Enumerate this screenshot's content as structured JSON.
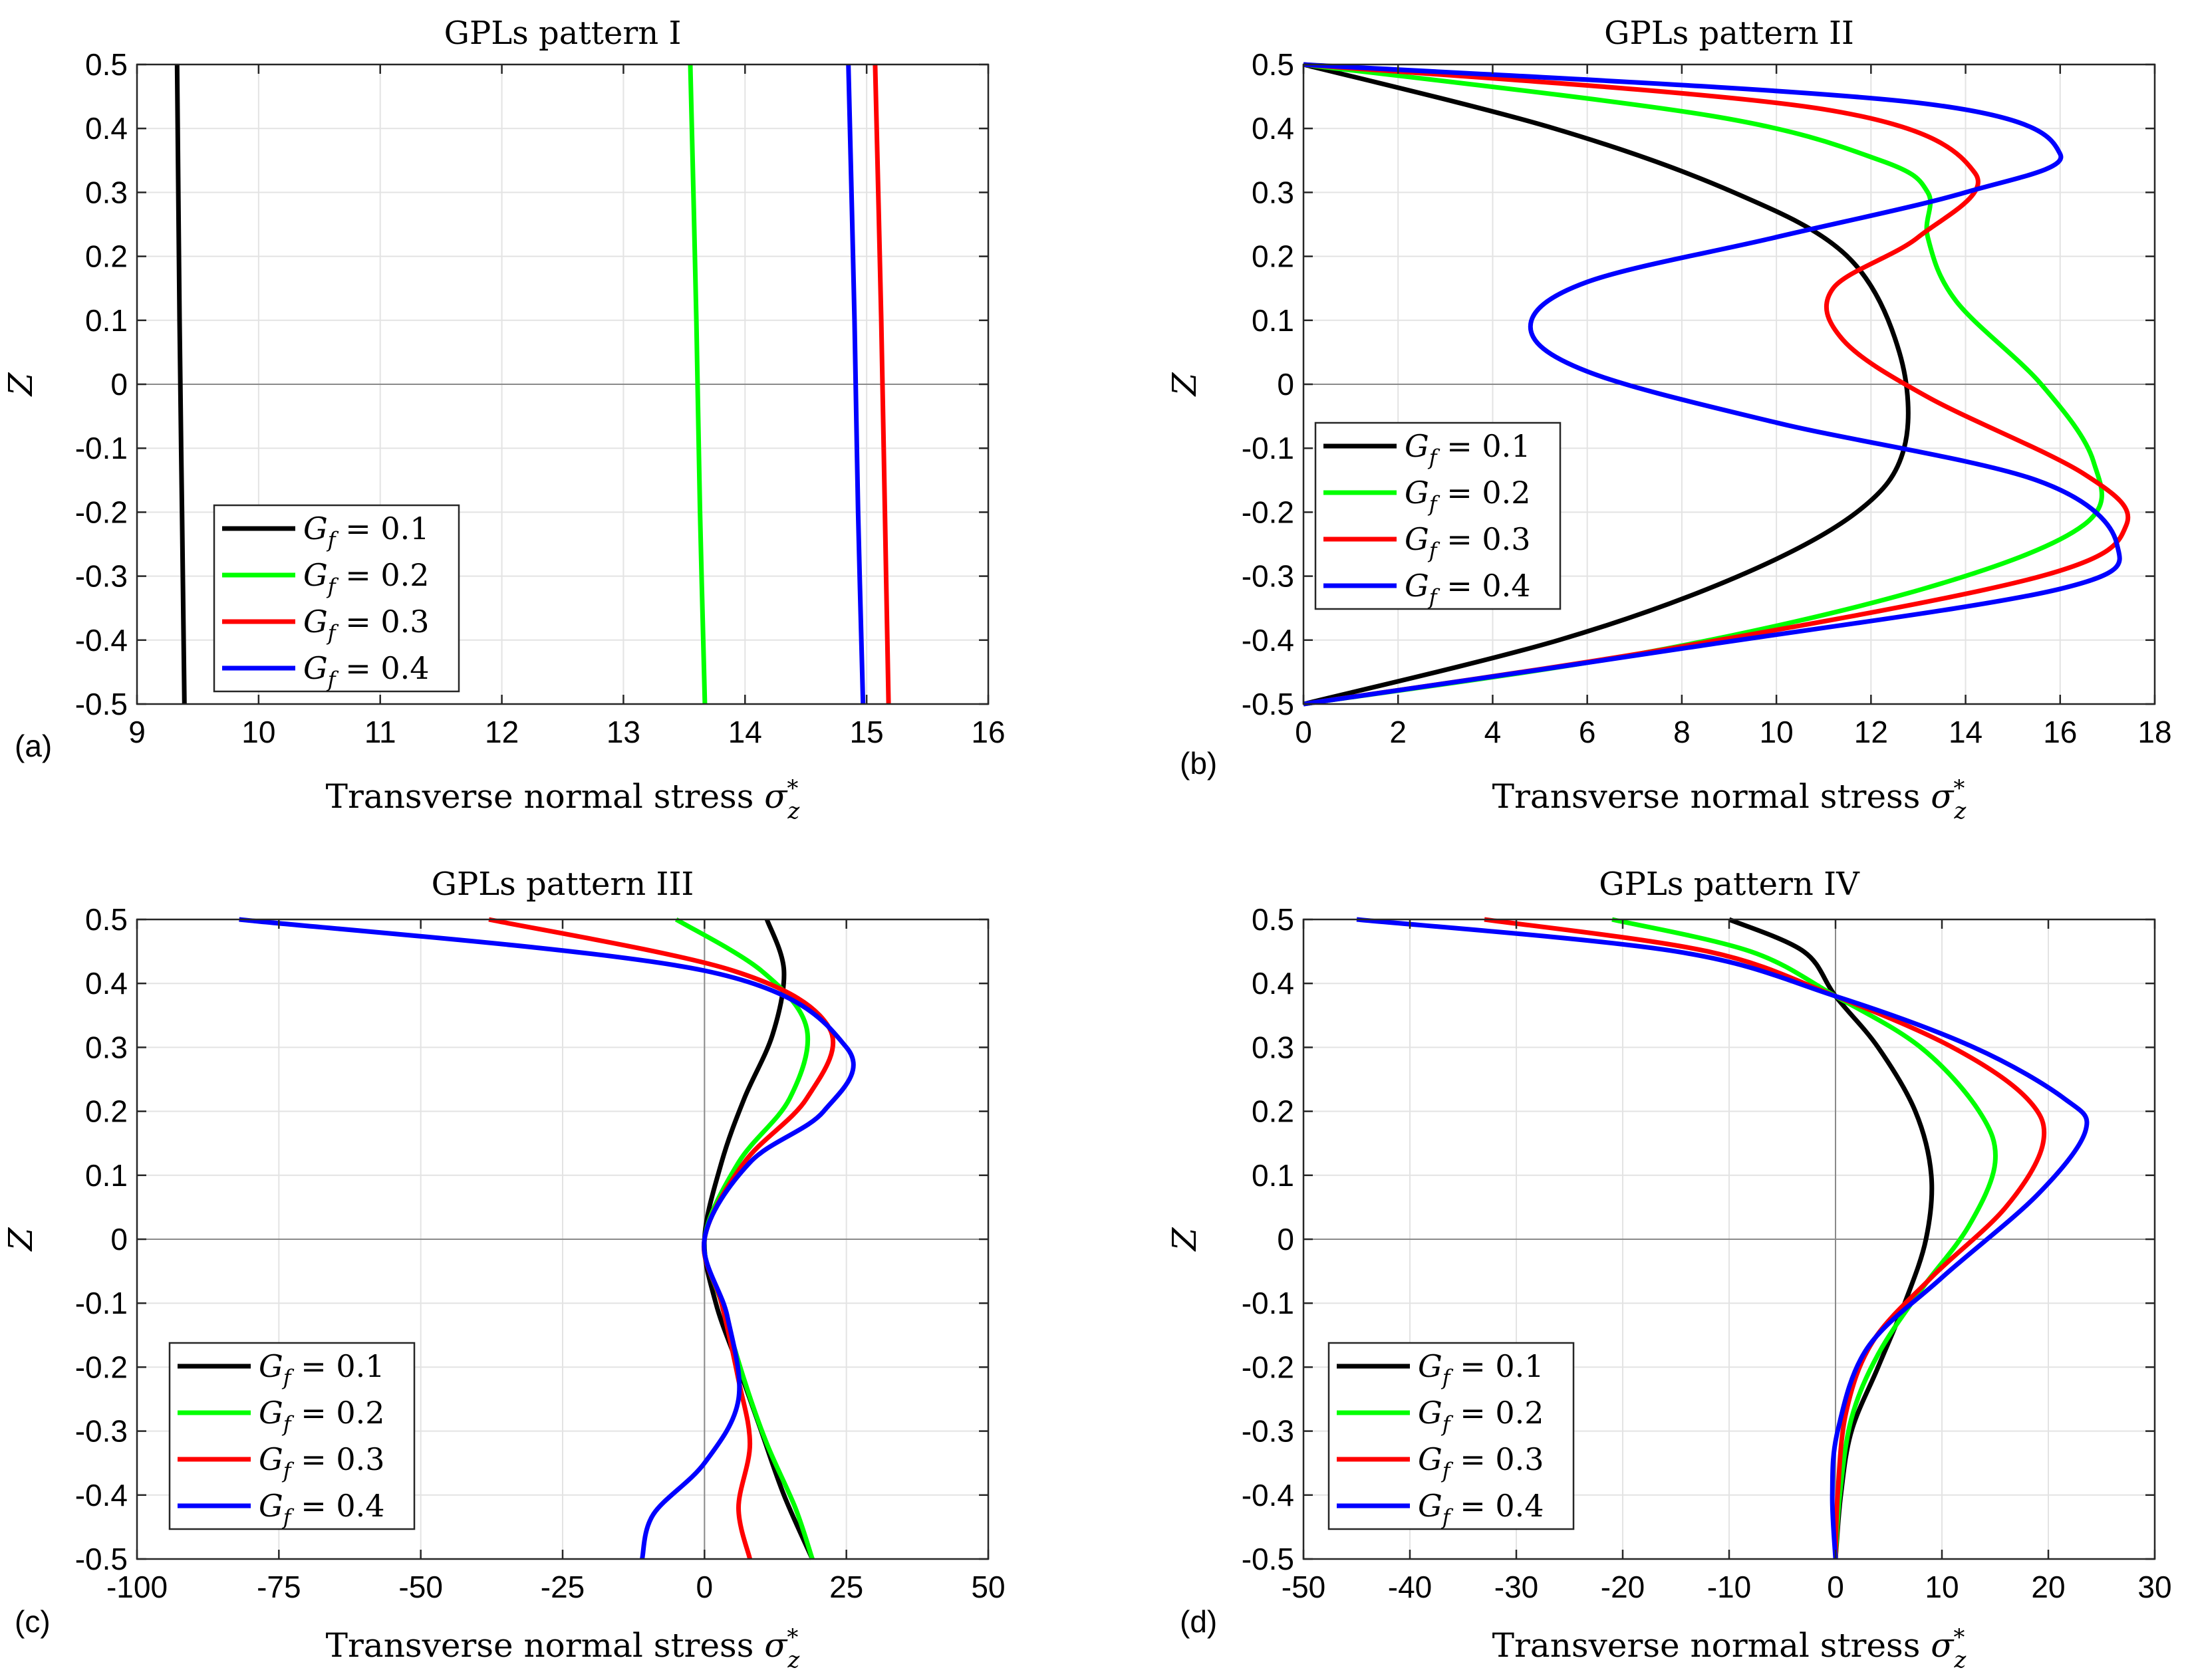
{
  "figure": {
    "legend_symbol": "G_f",
    "x_symbol": "σ*z"
  },
  "chart_data": [
    {
      "type": "line",
      "panel_label": "(a)",
      "title": "GPLs pattern I",
      "xlabel": "Transverse normal stress",
      "ylabel": "Z",
      "xlim": [
        9,
        16
      ],
      "ylim": [
        -0.5,
        0.5
      ],
      "xticks": [
        9,
        10,
        11,
        12,
        13,
        14,
        15,
        16
      ],
      "xtick_labels": [
        "9",
        "10",
        "11",
        "12",
        "13",
        "14",
        "15",
        "16"
      ],
      "yticks": [
        0.5,
        0.4,
        0.3,
        0.2,
        0.1,
        0,
        -0.1,
        -0.2,
        -0.3,
        -0.4,
        -0.5
      ],
      "ytick_labels": [
        "0.5",
        "0.4",
        "0.3",
        "0.2",
        "0.1",
        "0",
        "-0.1",
        "-0.2",
        "-0.3",
        "-0.4",
        "-0.5"
      ],
      "legend_position": "bottom-left",
      "series": [
        {
          "name": "Gf = 0.1",
          "value_label": "= 0.1",
          "color": "#000000",
          "x": [
            9.33,
            9.35,
            9.37,
            9.39
          ],
          "z": [
            0.5,
            0.1,
            -0.2,
            -0.5
          ]
        },
        {
          "name": "Gf = 0.2",
          "value_label": "= 0.2",
          "color": "#00ff00",
          "x": [
            13.55,
            13.6,
            13.63,
            13.67
          ],
          "z": [
            0.5,
            0.1,
            -0.2,
            -0.5
          ]
        },
        {
          "name": "Gf = 0.3",
          "value_label": "= 0.3",
          "color": "#ff0000",
          "x": [
            15.07,
            15.12,
            15.15,
            15.18
          ],
          "z": [
            0.5,
            0.1,
            -0.2,
            -0.5
          ]
        },
        {
          "name": "Gf = 0.4",
          "value_label": "= 0.4",
          "color": "#0000ff",
          "x": [
            14.85,
            14.9,
            14.93,
            14.97
          ],
          "z": [
            0.5,
            0.1,
            -0.2,
            -0.5
          ]
        }
      ]
    },
    {
      "type": "line",
      "panel_label": "(b)",
      "title": "GPLs pattern II",
      "xlabel": "Transverse normal stress",
      "ylabel": "Z",
      "xlim": [
        0,
        18
      ],
      "ylim": [
        -0.5,
        0.5
      ],
      "xticks": [
        0,
        2,
        4,
        6,
        8,
        10,
        12,
        14,
        16,
        18
      ],
      "xtick_labels": [
        "0",
        "2",
        "4",
        "6",
        "8",
        "10",
        "12",
        "14",
        "16",
        "18"
      ],
      "yticks": [
        0.5,
        0.4,
        0.3,
        0.2,
        0.1,
        0,
        -0.1,
        -0.2,
        -0.3,
        -0.4,
        -0.5
      ],
      "ytick_labels": [
        "0.5",
        "0.4",
        "0.3",
        "0.2",
        "0.1",
        "0",
        "-0.1",
        "-0.2",
        "-0.3",
        "-0.4",
        "-0.5"
      ],
      "legend_position": "middle-left",
      "series": [
        {
          "name": "Gf = 0.1",
          "value_label": "= 0.1",
          "color": "#000000",
          "x": [
            0,
            5.3,
            9.1,
            11.5,
            12.6,
            12.7,
            11.7,
            9.2,
            5.4,
            0
          ],
          "z": [
            0.5,
            0.4,
            0.3,
            0.2,
            0.05,
            -0.1,
            -0.2,
            -0.3,
            -0.4,
            -0.5
          ]
        },
        {
          "name": "Gf = 0.2",
          "value_label": "= 0.2",
          "color": "#00ff00",
          "x": [
            0,
            8.6,
            12.2,
            13.2,
            13.2,
            13.8,
            15.6,
            16.7,
            16.5,
            13.1,
            7.2,
            0
          ],
          "z": [
            0.5,
            0.42,
            0.35,
            0.3,
            0.23,
            0.13,
            0.0,
            -0.12,
            -0.22,
            -0.32,
            -0.42,
            -0.5
          ]
        },
        {
          "name": "Gf = 0.3",
          "value_label": "= 0.3",
          "color": "#ff0000",
          "x": [
            0,
            11.0,
            14.2,
            13.0,
            11.2,
            11.4,
            13.2,
            16.5,
            17.4,
            15.6,
            8.0,
            0
          ],
          "z": [
            0.5,
            0.43,
            0.33,
            0.23,
            0.15,
            0.07,
            -0.02,
            -0.14,
            -0.22,
            -0.3,
            -0.41,
            -0.5
          ]
        },
        {
          "name": "Gf = 0.4",
          "value_label": "= 0.4",
          "color": "#0000ff",
          "x": [
            0,
            13.0,
            16.0,
            14.0,
            10.0,
            6.0,
            4.8,
            6.0,
            10.0,
            15.5,
            17.2,
            16.0,
            8.3,
            0
          ],
          "z": [
            0.5,
            0.44,
            0.36,
            0.3,
            0.23,
            0.16,
            0.09,
            0.02,
            -0.06,
            -0.15,
            -0.25,
            -0.32,
            -0.41,
            -0.5
          ]
        }
      ]
    },
    {
      "type": "line",
      "panel_label": "(c)",
      "title": "GPLs pattern III",
      "xlabel": "Transverse normal stress",
      "ylabel": "Z",
      "xlim": [
        -100,
        50
      ],
      "ylim": [
        -0.5,
        0.5
      ],
      "xticks": [
        -100,
        -75,
        -50,
        -25,
        0,
        25,
        50
      ],
      "xtick_labels": [
        "-100",
        "-75",
        "-50",
        "-25",
        "0",
        "25",
        "50"
      ],
      "yticks": [
        0.5,
        0.4,
        0.3,
        0.2,
        0.1,
        0,
        -0.1,
        -0.2,
        -0.3,
        -0.4,
        -0.5
      ],
      "ytick_labels": [
        "0.5",
        "0.4",
        "0.3",
        "0.2",
        "0.1",
        "0",
        "-0.1",
        "-0.2",
        "-0.3",
        "-0.4",
        "-0.5"
      ],
      "legend_position": "bottom-left",
      "series": [
        {
          "name": "Gf = 0.1",
          "value_label": "= 0.1",
          "color": "#000000",
          "x": [
            11,
            14,
            12,
            7,
            3,
            0,
            2,
            6,
            10,
            14,
            19
          ],
          "z": [
            0.5,
            0.42,
            0.32,
            0.22,
            0.12,
            0.0,
            -0.1,
            -0.2,
            -0.3,
            -0.4,
            -0.5
          ]
        },
        {
          "name": "Gf = 0.2",
          "value_label": "= 0.2",
          "color": "#00ff00",
          "x": [
            -5,
            10,
            18,
            15,
            6,
            0,
            3,
            7,
            11,
            16,
            19
          ],
          "z": [
            0.5,
            0.42,
            0.33,
            0.22,
            0.12,
            0.0,
            -0.1,
            -0.22,
            -0.32,
            -0.42,
            -0.5
          ]
        },
        {
          "name": "Gf = 0.3",
          "value_label": "= 0.3",
          "color": "#ff0000",
          "x": [
            -38,
            5,
            22,
            18,
            7,
            0,
            3,
            6,
            8,
            6,
            8
          ],
          "z": [
            0.5,
            0.42,
            0.33,
            0.22,
            0.12,
            0.0,
            -0.1,
            -0.22,
            -0.32,
            -0.42,
            -0.5
          ]
        },
        {
          "name": "Gf = 0.4",
          "value_label": "= 0.4",
          "color": "#0000ff",
          "x": [
            -82,
            0,
            25,
            21,
            8,
            0,
            4,
            6,
            0,
            -9,
            -11
          ],
          "z": [
            0.5,
            0.42,
            0.3,
            0.2,
            0.12,
            0.0,
            -0.12,
            -0.25,
            -0.35,
            -0.43,
            -0.5
          ]
        }
      ]
    },
    {
      "type": "line",
      "panel_label": "(d)",
      "title": "GPLs pattern IV",
      "xlabel": "Transverse normal stress",
      "ylabel": "Z",
      "xlim": [
        -50,
        30
      ],
      "ylim": [
        -0.5,
        0.5
      ],
      "xticks": [
        -50,
        -40,
        -30,
        -20,
        -10,
        0,
        10,
        20,
        30
      ],
      "xtick_labels": [
        "-50",
        "-40",
        "-30",
        "-20",
        "-10",
        "0",
        "10",
        "20",
        "30"
      ],
      "yticks": [
        0.5,
        0.4,
        0.3,
        0.2,
        0.1,
        0,
        -0.1,
        -0.2,
        -0.3,
        -0.4,
        -0.5
      ],
      "ytick_labels": [
        "0.5",
        "0.4",
        "0.3",
        "0.2",
        "0.1",
        "0",
        "-0.1",
        "-0.2",
        "-0.3",
        "-0.4",
        "-0.5"
      ],
      "legend_position": "bottom-left",
      "series": [
        {
          "name": "Gf = 0.1",
          "value_label": "= 0.1",
          "color": "#000000",
          "x": [
            -10,
            -3,
            0,
            4,
            7.5,
            9,
            8.5,
            6.5,
            4,
            1.5,
            0.5,
            0
          ],
          "z": [
            0.5,
            0.45,
            0.38,
            0.3,
            0.2,
            0.1,
            0.0,
            -0.1,
            -0.2,
            -0.3,
            -0.4,
            -0.5
          ]
        },
        {
          "name": "Gf = 0.2",
          "value_label": "= 0.2",
          "color": "#00ff00",
          "x": [
            -21,
            -8,
            0,
            8,
            13.5,
            15,
            12.5,
            8,
            4,
            1.5,
            0.4,
            0
          ],
          "z": [
            0.5,
            0.45,
            0.38,
            0.3,
            0.2,
            0.12,
            0.02,
            -0.08,
            -0.18,
            -0.28,
            -0.4,
            -0.5
          ]
        },
        {
          "name": "Gf = 0.3",
          "value_label": "= 0.3",
          "color": "#ff0000",
          "x": [
            -33,
            -12,
            0,
            11,
            18,
            19.5,
            16,
            9,
            3.5,
            1,
            0.2,
            0
          ],
          "z": [
            0.5,
            0.45,
            0.38,
            0.3,
            0.22,
            0.15,
            0.05,
            -0.06,
            -0.16,
            -0.27,
            -0.4,
            -0.5
          ]
        },
        {
          "name": "Gf = 0.4",
          "value_label": "= 0.4",
          "color": "#0000ff",
          "x": [
            -45,
            -15,
            0,
            13,
            21.5,
            23.5,
            19,
            10,
            3,
            0.2,
            -0.3,
            0
          ],
          "z": [
            0.5,
            0.45,
            0.38,
            0.3,
            0.22,
            0.17,
            0.07,
            -0.06,
            -0.17,
            -0.3,
            -0.4,
            -0.5
          ]
        }
      ]
    }
  ]
}
